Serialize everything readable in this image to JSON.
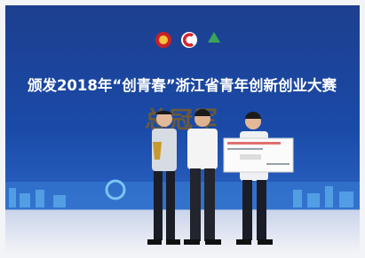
{
  "banner": {
    "title": "颁发2018年“创青春”浙江省青年创新创业大赛",
    "award": "总冠军"
  }
}
